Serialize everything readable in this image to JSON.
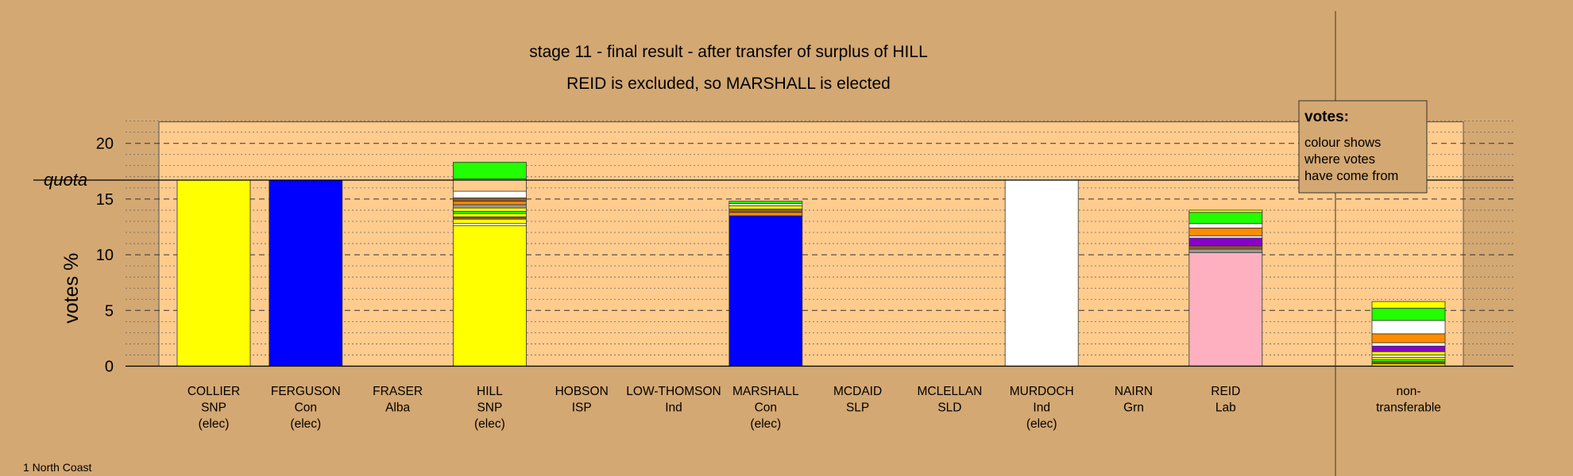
{
  "title_line1": "stage 11 - final result - after transfer of surplus of HILL",
  "title_line2": "REID is excluded, so MARSHALL is elected",
  "footer": "1 North Coast",
  "legend": {
    "heading": "votes:",
    "lines": [
      "colour shows",
      "where votes",
      "have come from"
    ]
  },
  "colors": {
    "background": "#d4a872",
    "plot_background": "#ffcc8e",
    "SNP": "#ffff00",
    "Con": "#0000ff",
    "Ind": "#ffffff",
    "Lab": "#ffb0c0",
    "Grn": "#22ff00",
    "orange": "#ff8c00",
    "purple": "#8800cc",
    "brown": "#8b5a2b",
    "red": "#dd0000",
    "grey": "#999999"
  },
  "chart_data": {
    "type": "bar",
    "stacked": true,
    "ylabel": "votes %",
    "ylim": [
      0,
      22
    ],
    "yticks": [
      0,
      5,
      10,
      15,
      20
    ],
    "quota": 16.7,
    "quota_label": "quota",
    "grid": true,
    "candidates": [
      {
        "lines": [
          "COLLIER",
          "SNP",
          "(elec)"
        ],
        "segments": [
          {
            "value": 16.7,
            "color": "#ffff00"
          }
        ]
      },
      {
        "lines": [
          "FERGUSON",
          "Con",
          "(elec)"
        ],
        "segments": [
          {
            "value": 16.7,
            "color": "#0000ff"
          }
        ]
      },
      {
        "lines": [
          "FRASER",
          "Alba"
        ],
        "segments": []
      },
      {
        "lines": [
          "HILL",
          "SNP",
          "(elec)"
        ],
        "segments": [
          {
            "value": 12.6,
            "color": "#ffff00"
          },
          {
            "value": 0.2,
            "color": "#ffffff"
          },
          {
            "value": 0.4,
            "color": "#ffff00"
          },
          {
            "value": 0.2,
            "color": "#8b5a2b"
          },
          {
            "value": 0.3,
            "color": "#ffff00"
          },
          {
            "value": 0.2,
            "color": "#22ff00"
          },
          {
            "value": 0.3,
            "color": "#ffff00"
          },
          {
            "value": 0.3,
            "color": "#999999"
          },
          {
            "value": 0.3,
            "color": "#ff8c00"
          },
          {
            "value": 0.3,
            "color": "#8b5a2b"
          },
          {
            "value": 0.6,
            "color": "#ffffff"
          },
          {
            "value": 1.0,
            "color": "#ffcc8e"
          },
          {
            "value": 0.1,
            "color": "#ffffff"
          },
          {
            "value": 1.5,
            "color": "#22ff00"
          }
        ]
      },
      {
        "lines": [
          "HOBSON",
          "ISP"
        ],
        "segments": []
      },
      {
        "lines": [
          "LOW-THOMSON",
          "Ind"
        ],
        "segments": []
      },
      {
        "lines": [
          "MARSHALL",
          "Con",
          "(elec)"
        ],
        "segments": [
          {
            "value": 13.5,
            "color": "#0000ff"
          },
          {
            "value": 0.3,
            "color": "#ff8c00"
          },
          {
            "value": 0.3,
            "color": "#8b5a2b"
          },
          {
            "value": 0.3,
            "color": "#ffff00"
          },
          {
            "value": 0.2,
            "color": "#ffffff"
          },
          {
            "value": 0.2,
            "color": "#22ff00"
          }
        ]
      },
      {
        "lines": [
          "MCDAID",
          "SLP"
        ],
        "segments": []
      },
      {
        "lines": [
          "MCLELLAN",
          "SLD"
        ],
        "segments": []
      },
      {
        "lines": [
          "MURDOCH",
          "Ind",
          "(elec)"
        ],
        "segments": [
          {
            "value": 16.7,
            "color": "#ffffff"
          }
        ]
      },
      {
        "lines": [
          "NAIRN",
          "Grn"
        ],
        "segments": []
      },
      {
        "lines": [
          "REID",
          "Lab"
        ],
        "segments": [
          {
            "value": 10.2,
            "color": "#ffb0c0"
          },
          {
            "value": 0.3,
            "color": "#999999"
          },
          {
            "value": 0.3,
            "color": "#8b5a2b"
          },
          {
            "value": 0.7,
            "color": "#8800cc"
          },
          {
            "value": 0.2,
            "color": "#ffffff"
          },
          {
            "value": 0.7,
            "color": "#ff8c00"
          },
          {
            "value": 0.4,
            "color": "#ffffff"
          },
          {
            "value": 1.0,
            "color": "#22ff00"
          },
          {
            "value": 0.2,
            "color": "#ffff00"
          }
        ]
      }
    ],
    "nontransferable": {
      "lines": [
        "non-",
        "transferable"
      ],
      "segments": [
        {
          "value": 0.2,
          "color": "#ffff00"
        },
        {
          "value": 0.2,
          "color": "#8b5a2b"
        },
        {
          "value": 0.2,
          "color": "#22ff00"
        },
        {
          "value": 0.2,
          "color": "#ffff00"
        },
        {
          "value": 0.2,
          "color": "#ffffff"
        },
        {
          "value": 0.3,
          "color": "#ffff00"
        },
        {
          "value": 0.5,
          "color": "#8800cc"
        },
        {
          "value": 0.3,
          "color": "#ffffff"
        },
        {
          "value": 0.8,
          "color": "#ff8c00"
        },
        {
          "value": 1.2,
          "color": "#ffffff"
        },
        {
          "value": 1.1,
          "color": "#22ff00"
        },
        {
          "value": 0.6,
          "color": "#ffff00"
        }
      ]
    }
  }
}
